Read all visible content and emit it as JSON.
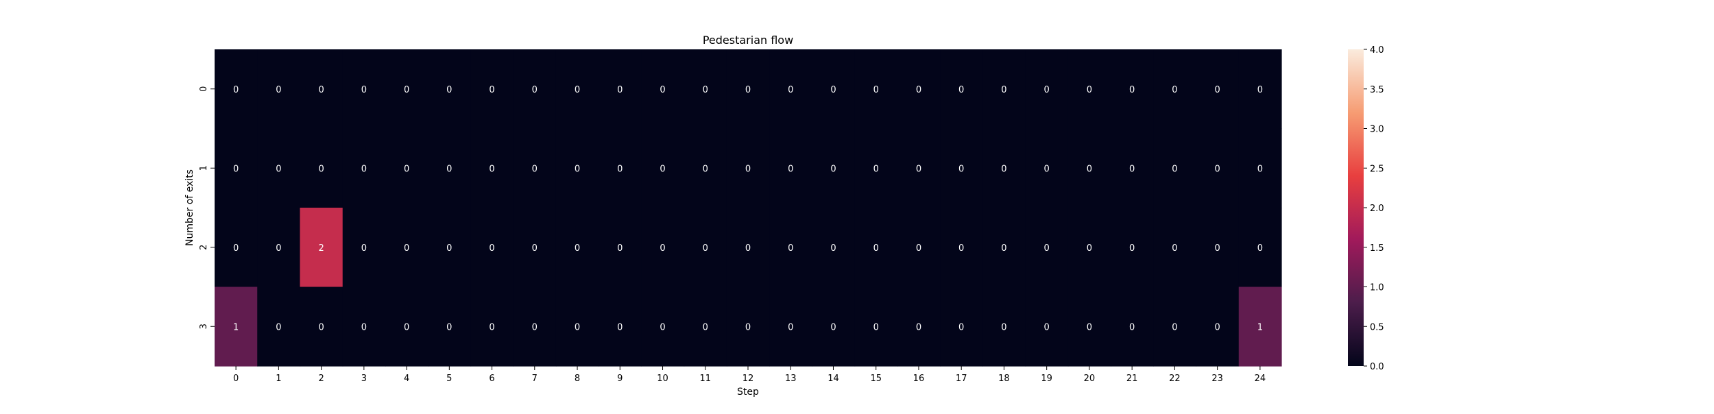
{
  "chart_data": {
    "type": "heatmap",
    "title": "Pedestarian flow",
    "xlabel": "Step",
    "ylabel": "Number of exits",
    "x_categories": [
      "0",
      "1",
      "2",
      "3",
      "4",
      "5",
      "6",
      "7",
      "8",
      "9",
      "10",
      "11",
      "12",
      "13",
      "14",
      "15",
      "16",
      "17",
      "18",
      "19",
      "20",
      "21",
      "22",
      "23",
      "24"
    ],
    "y_categories": [
      "0",
      "1",
      "2",
      "3"
    ],
    "values": [
      [
        0,
        0,
        0,
        0,
        0,
        0,
        0,
        0,
        0,
        0,
        0,
        0,
        0,
        0,
        0,
        0,
        0,
        0,
        0,
        0,
        0,
        0,
        0,
        0,
        0
      ],
      [
        0,
        0,
        0,
        0,
        0,
        0,
        0,
        0,
        0,
        0,
        0,
        0,
        0,
        0,
        0,
        0,
        0,
        0,
        0,
        0,
        0,
        0,
        0,
        0,
        0
      ],
      [
        0,
        0,
        2,
        0,
        0,
        0,
        0,
        0,
        0,
        0,
        0,
        0,
        0,
        0,
        0,
        0,
        0,
        0,
        0,
        0,
        0,
        0,
        0,
        0,
        0
      ],
      [
        1,
        0,
        0,
        0,
        0,
        0,
        0,
        0,
        0,
        0,
        0,
        0,
        0,
        0,
        0,
        0,
        0,
        0,
        0,
        0,
        0,
        0,
        0,
        0,
        1
      ]
    ],
    "colorbar": {
      "vmin": 0.0,
      "vmax": 4.0,
      "ticks": [
        "0.0",
        "0.5",
        "1.0",
        "1.5",
        "2.0",
        "2.5",
        "3.0",
        "3.5",
        "4.0"
      ]
    },
    "colormap": [
      "#03051a",
      "#4c1d4b",
      "#a11a5b",
      "#e83f3f",
      "#f69c73",
      "#faebdd"
    ],
    "annotation_color": "#ffffff"
  }
}
